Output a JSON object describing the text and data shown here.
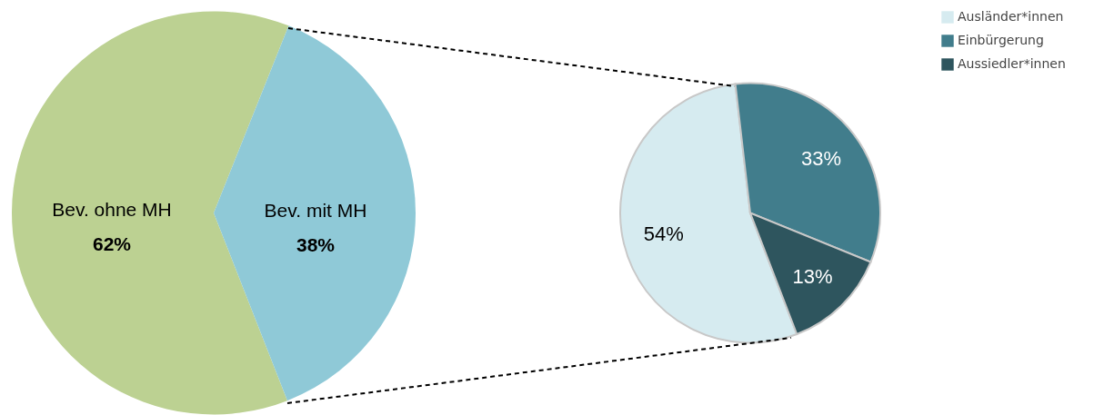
{
  "chart_data": [
    {
      "type": "pie",
      "categories": [
        "Bev. ohne MH",
        "Bev. mit MH"
      ],
      "values": [
        62,
        38
      ],
      "colors": [
        "#bcd192",
        "#8fc9d7"
      ],
      "value_labels": [
        "62%",
        "38%"
      ]
    },
    {
      "type": "pie",
      "categories": [
        "Ausländer*innen",
        "Einbürgerung",
        "Aussiedler*innen"
      ],
      "values": [
        54,
        33,
        13
      ],
      "colors": [
        "#d6ebf0",
        "#417d8c",
        "#2e555e"
      ],
      "value_labels": [
        "54%",
        "33%",
        "13%"
      ],
      "legend": "right"
    }
  ]
}
